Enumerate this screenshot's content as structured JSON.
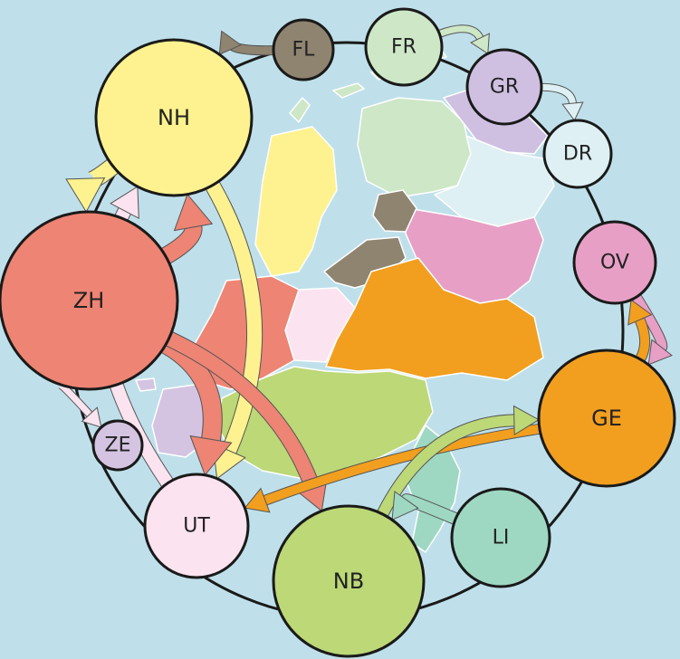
{
  "colors": {
    "background": "#bfe0ea",
    "ring": "#1a1a1a",
    "province_outline": "#ffffff"
  },
  "nodes": [
    {
      "id": "NH",
      "label": "NH",
      "color": "#fdf28f"
    },
    {
      "id": "ZH",
      "label": "ZH",
      "color": "#ee8474"
    },
    {
      "id": "FL",
      "label": "FL",
      "color": "#8f8470"
    },
    {
      "id": "FR",
      "label": "FR",
      "color": "#cde7c7"
    },
    {
      "id": "GR",
      "label": "GR",
      "color": "#cfc0e2"
    },
    {
      "id": "DR",
      "label": "DR",
      "color": "#def0f3"
    },
    {
      "id": "OV",
      "label": "OV",
      "color": "#e79fc6"
    },
    {
      "id": "GE",
      "label": "GE",
      "color": "#f29f1f"
    },
    {
      "id": "LI",
      "label": "LI",
      "color": "#9ed8c2"
    },
    {
      "id": "NB",
      "label": "NB",
      "color": "#bcd877"
    },
    {
      "id": "UT",
      "label": "UT",
      "color": "#fbe3ef"
    },
    {
      "id": "ZE",
      "label": "ZE",
      "color": "#d4c4e2"
    }
  ],
  "flows": [
    {
      "from": "FL",
      "to": "NH",
      "color": "#8f8470",
      "width": 9
    },
    {
      "from": "FR",
      "to": "GR",
      "color": "#cde7c7",
      "width": 7
    },
    {
      "from": "GR",
      "to": "DR",
      "color": "#def0f3",
      "width": 7
    },
    {
      "from": "NH",
      "to": "ZH",
      "color": "#fdf28f",
      "width": 18
    },
    {
      "from": "ZH",
      "to": "NH",
      "color": "#ee8474",
      "width": 18
    },
    {
      "from": "NH",
      "to": "UT",
      "color": "#fdf28f",
      "width": 16
    },
    {
      "from": "UT",
      "to": "NH",
      "color": "#fbe3ef",
      "width": 14
    },
    {
      "from": "ZH",
      "to": "UT",
      "color": "#ee8474",
      "width": 20
    },
    {
      "from": "ZH",
      "to": "NB",
      "color": "#ee8474",
      "width": 16
    },
    {
      "from": "ZH",
      "to": "ZE",
      "color": "#fbe3ef",
      "width": 7
    },
    {
      "from": "OV",
      "to": "GE",
      "color": "#e79fc6",
      "width": 10
    },
    {
      "from": "GE",
      "to": "OV",
      "color": "#f29f1f",
      "width": 10
    },
    {
      "from": "GE",
      "to": "UT",
      "color": "#f29f1f",
      "width": 10
    },
    {
      "from": "NB",
      "to": "GE",
      "color": "#bcd877",
      "width": 12
    },
    {
      "from": "LI",
      "to": "NB",
      "color": "#9ed8c2",
      "width": 12
    }
  ]
}
